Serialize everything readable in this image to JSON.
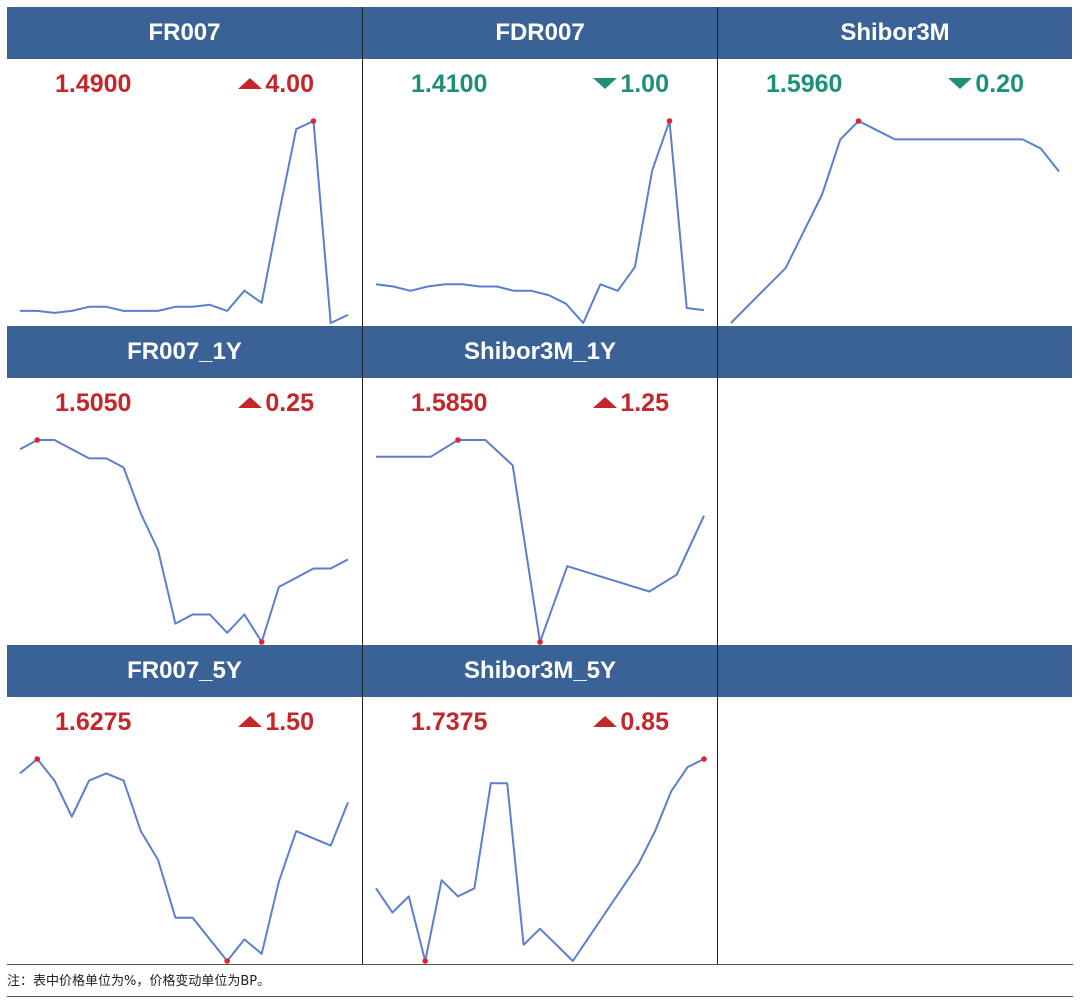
{
  "colors": {
    "header_bg": "#3a6297",
    "up": "#c4262b",
    "down": "#1e9078",
    "line": "#5b7fcf",
    "marker": "#e0242b"
  },
  "panels": [
    {
      "title": "FR007",
      "value": "1.4900",
      "change": "4.00",
      "direction": "up",
      "marker": "max",
      "chart_data": {
        "type": "line",
        "y": [
          1.36,
          1.36,
          1.355,
          1.36,
          1.37,
          1.37,
          1.36,
          1.36,
          1.36,
          1.37,
          1.37,
          1.375,
          1.36,
          1.41,
          1.38,
          1.6,
          1.81,
          1.83,
          1.33,
          1.35
        ]
      }
    },
    {
      "title": "FDR007",
      "value": "1.4100",
      "change": "1.00",
      "direction": "down",
      "marker": "max",
      "chart_data": {
        "type": "line",
        "y": [
          1.45,
          1.44,
          1.42,
          1.44,
          1.45,
          1.45,
          1.44,
          1.44,
          1.42,
          1.42,
          1.4,
          1.36,
          1.27,
          1.45,
          1.42,
          1.53,
          1.98,
          2.21,
          1.34,
          1.33
        ]
      }
    },
    {
      "title": "Shibor3M",
      "value": "1.5960",
      "change": "0.20",
      "direction": "down",
      "marker": "max",
      "chart_data": {
        "type": "line",
        "y": [
          1.5,
          1.52,
          1.54,
          1.56,
          1.6,
          1.64,
          1.7,
          1.72,
          1.71,
          1.7,
          1.7,
          1.7,
          1.7,
          1.7,
          1.7,
          1.7,
          1.7,
          1.69,
          1.665
        ]
      }
    },
    {
      "title": "FR007_1Y",
      "value": "1.5050",
      "change": "0.25",
      "direction": "up",
      "marker": "both",
      "chart_data": {
        "type": "line",
        "y": [
          1.61,
          1.62,
          1.62,
          1.61,
          1.6,
          1.6,
          1.59,
          1.54,
          1.5,
          1.42,
          1.43,
          1.43,
          1.41,
          1.43,
          1.4,
          1.46,
          1.47,
          1.48,
          1.48,
          1.49
        ]
      }
    },
    {
      "title": "Shibor3M_1Y",
      "value": "1.5850",
      "change": "1.25",
      "direction": "up",
      "marker": "both",
      "chart_data": {
        "type": "line",
        "y": [
          1.68,
          1.68,
          1.68,
          1.7,
          1.7,
          1.67,
          1.46,
          1.55,
          1.54,
          1.53,
          1.52,
          1.54,
          1.61
        ]
      }
    },
    {
      "title": "FR007_5Y",
      "value": "1.6275",
      "change": "1.50",
      "direction": "up",
      "marker": "both",
      "chart_data": {
        "type": "line",
        "y": [
          1.9,
          1.92,
          1.89,
          1.84,
          1.89,
          1.9,
          1.89,
          1.82,
          1.78,
          1.7,
          1.7,
          1.67,
          1.64,
          1.67,
          1.65,
          1.75,
          1.82,
          1.81,
          1.8,
          1.86
        ]
      }
    },
    {
      "title": "Shibor3M_5Y",
      "value": "1.7375",
      "change": "0.85",
      "direction": "up",
      "marker": "both",
      "chart_data": {
        "type": "line",
        "y": [
          1.73,
          1.7,
          1.72,
          1.64,
          1.74,
          1.72,
          1.73,
          1.86,
          1.86,
          1.66,
          1.68,
          1.66,
          1.64,
          1.67,
          1.7,
          1.73,
          1.76,
          1.8,
          1.85,
          1.88,
          1.89
        ]
      }
    }
  ],
  "footnote": "注：表中价格单位为%，价格变动单位为BP。"
}
